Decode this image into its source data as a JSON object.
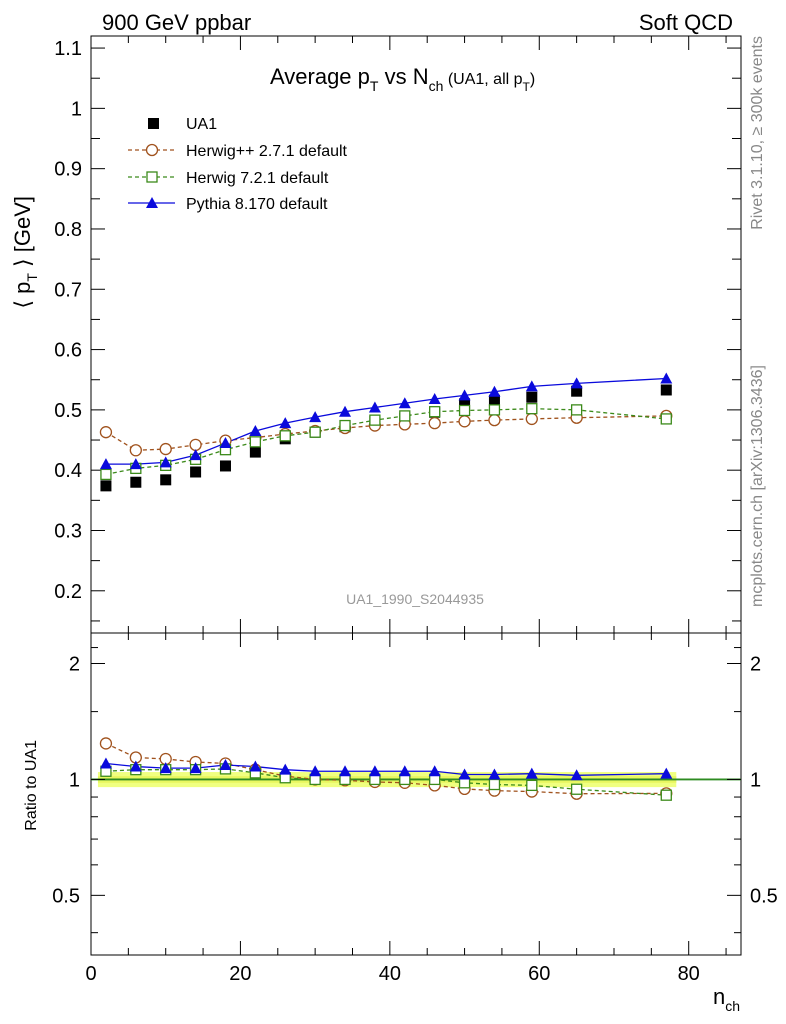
{
  "header": {
    "left": "900 GeV ppbar",
    "right": "Soft QCD"
  },
  "side_labels": {
    "rivet": "Rivet 3.1.10,  ≥ 300k events",
    "mcplots": "mcplots.cern.ch [arXiv:1306.3436]"
  },
  "watermark": "UA1_1990_S2044935",
  "title": {
    "main": "Average p",
    "main_sub": "T",
    "vs": " vs N",
    "vs_sub": "ch",
    "extra": " (UA1, all p",
    "extra_sub": "T",
    "extra_end": ")"
  },
  "ylabel": {
    "open": "⟨ p",
    "sub": "T",
    "close": " ⟩ [GeV]"
  },
  "ratio_ylabel": "Ratio to UA1",
  "xlabel": {
    "main": "n",
    "sub": "ch"
  },
  "colors": {
    "data": "#000000",
    "herwigpp": "#a0521d",
    "herwig7": "#3b8a1a",
    "pythia": "#0a0adc",
    "band": "#f0ff80",
    "ratio_line": "#2e8b22"
  },
  "chart_data": {
    "type": "scatter",
    "xlabel": "n_ch",
    "ylabel": "<p_T> [GeV]",
    "x": [
      2,
      6,
      10,
      14,
      18,
      22,
      26,
      30,
      34,
      38,
      42,
      46,
      50,
      54,
      59,
      65,
      77
    ],
    "xlim": [
      0,
      87
    ],
    "main_ylim": [
      0.13,
      1.12
    ],
    "ratio_ylim": [
      0.35,
      2.4
    ],
    "x_ticks": [
      0,
      20,
      40,
      60,
      80
    ],
    "x_tick_labels": [
      "0",
      "20",
      "40",
      "60",
      "80"
    ],
    "main_y_ticks": [
      0.2,
      0.3,
      0.4,
      0.5,
      0.6,
      0.7,
      0.8,
      0.9,
      1.0,
      1.1
    ],
    "main_y_tick_labels": [
      "0.2",
      "0.3",
      "0.4",
      "0.5",
      "0.6",
      "0.7",
      "0.8",
      "0.9",
      "1",
      "1.1"
    ],
    "ratio_y_ticks": [
      0.5,
      1,
      2
    ],
    "ratio_y_tick_labels": [
      "0.5",
      "1",
      "2"
    ],
    "series": [
      {
        "name": "UA1",
        "key": "data",
        "style": "filled-square",
        "values": [
          0.374,
          0.38,
          0.384,
          0.397,
          0.407,
          0.43,
          0.452,
          0.463,
          0.472,
          0.481,
          0.486,
          0.496,
          0.51,
          0.516,
          0.521,
          0.531,
          0.533
        ]
      },
      {
        "name": "Herwig++ 2.7.1 default",
        "key": "herwigpp",
        "style": "open-circle-dashed",
        "values": [
          0.463,
          0.433,
          0.435,
          0.442,
          0.449,
          0.454,
          0.46,
          0.465,
          0.47,
          0.474,
          0.476,
          0.478,
          0.481,
          0.483,
          0.485,
          0.487,
          0.49
        ],
        "ratio": [
          1.24,
          1.14,
          1.13,
          1.11,
          1.1,
          1.06,
          1.02,
          1.0,
          0.995,
          0.985,
          0.98,
          0.965,
          0.945,
          0.935,
          0.93,
          0.918,
          0.92
        ]
      },
      {
        "name": "Herwig 7.2.1 default",
        "key": "herwig7",
        "style": "open-square-dashed",
        "values": [
          0.393,
          0.403,
          0.408,
          0.418,
          0.434,
          0.447,
          0.457,
          0.463,
          0.474,
          0.483,
          0.49,
          0.497,
          0.499,
          0.5,
          0.502,
          0.5,
          0.485
        ],
        "ratio": [
          1.05,
          1.06,
          1.06,
          1.06,
          1.065,
          1.04,
          1.01,
          1.0,
          1.0,
          1.0,
          1.0,
          1.0,
          0.98,
          0.97,
          0.965,
          0.943,
          0.91
        ]
      },
      {
        "name": "Pythia 8.170 default",
        "key": "pythia",
        "style": "filled-triangle-solid",
        "values": [
          0.41,
          0.41,
          0.413,
          0.425,
          0.445,
          0.465,
          0.478,
          0.488,
          0.497,
          0.504,
          0.511,
          0.518,
          0.524,
          0.53,
          0.539,
          0.544,
          0.552
        ],
        "ratio": [
          1.1,
          1.08,
          1.07,
          1.07,
          1.09,
          1.08,
          1.06,
          1.05,
          1.05,
          1.05,
          1.05,
          1.05,
          1.03,
          1.03,
          1.035,
          1.025,
          1.035
        ]
      }
    ]
  }
}
